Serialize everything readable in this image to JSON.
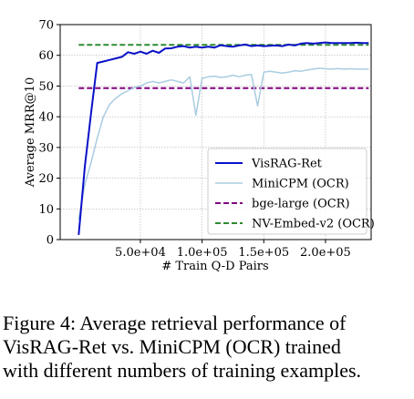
{
  "chart_data": {
    "type": "line",
    "title": "",
    "xlabel": "# Train Q-D Pairs",
    "ylabel": "Average MRR@10",
    "xlim": [
      -15000,
      237000
    ],
    "ylim": [
      0,
      70
    ],
    "x_ticks": [
      50000,
      100000,
      150000,
      200000
    ],
    "x_tick_labels": [
      "5.0e+04",
      "1.0e+05",
      "1.5e+05",
      "2.0e+05"
    ],
    "y_ticks": [
      0,
      10,
      20,
      30,
      40,
      50,
      60,
      70
    ],
    "y_tick_labels": [
      "0",
      "10",
      "20",
      "30",
      "40",
      "50",
      "60",
      "70"
    ],
    "grid": true,
    "legend_position": "lower-right",
    "series": [
      {
        "name": "VisRAG-Ret",
        "color": "#0a10c8",
        "style": "solid",
        "width": 2,
        "x": [
          0,
          5000,
          10000,
          15000,
          20000,
          25000,
          30000,
          35000,
          40000,
          45000,
          50000,
          55000,
          60000,
          65000,
          70000,
          75000,
          80000,
          85000,
          90000,
          95000,
          100000,
          105000,
          110000,
          115000,
          120000,
          125000,
          130000,
          135000,
          140000,
          145000,
          150000,
          155000,
          160000,
          165000,
          170000,
          175000,
          180000,
          185000,
          190000,
          195000,
          200000,
          205000,
          210000,
          215000,
          220000,
          225000,
          230000,
          235000
        ],
        "y": [
          1.5,
          24,
          41,
          57.5,
          58,
          58.5,
          59,
          59.5,
          61,
          60.5,
          61.2,
          60.5,
          61.5,
          60.8,
          62.2,
          62.3,
          62.8,
          63,
          62.5,
          62.8,
          62.5,
          62.8,
          62.5,
          63.3,
          63,
          62.8,
          63.2,
          63.5,
          63,
          63.2,
          63,
          63.1,
          63.2,
          63,
          63.5,
          63.2,
          63.8,
          64,
          63.8,
          64,
          64.2,
          64,
          64,
          64,
          64,
          64.1,
          64,
          64
        ]
      },
      {
        "name": "MiniCPM (OCR)",
        "color": "#a9cde0",
        "style": "solid",
        "width": 1.5,
        "x": [
          0,
          5000,
          10000,
          15000,
          20000,
          25000,
          30000,
          35000,
          40000,
          45000,
          50000,
          55000,
          60000,
          65000,
          70000,
          75000,
          80000,
          85000,
          90000,
          95000,
          100000,
          105000,
          110000,
          115000,
          120000,
          125000,
          130000,
          135000,
          140000,
          145000,
          150000,
          155000,
          160000,
          165000,
          170000,
          175000,
          180000,
          185000,
          190000,
          195000,
          200000,
          205000,
          210000,
          215000,
          220000,
          225000,
          230000,
          235000
        ],
        "y": [
          6.5,
          18,
          25,
          33,
          40,
          44,
          46,
          47.5,
          48.5,
          49.5,
          50,
          51,
          51.5,
          51,
          51.5,
          52,
          51.5,
          51,
          53,
          40.5,
          52.5,
          53,
          53.2,
          52.8,
          53,
          53.5,
          53,
          53.5,
          53.8,
          43.5,
          54.5,
          54.8,
          54.5,
          54.2,
          54.5,
          55,
          54.8,
          55.2,
          55.5,
          55.8,
          55.6,
          55.5,
          55.7,
          55.5,
          55.6,
          55.5,
          55.5,
          55.5
        ]
      },
      {
        "name": "bge-large (OCR)",
        "color": "#800080",
        "style": "dashed",
        "width": 2,
        "x": [
          0,
          235000
        ],
        "y": [
          49.3,
          49.3
        ]
      },
      {
        "name": "NV-Embed-v2 (OCR)",
        "color": "#2e8b2e",
        "style": "dashed",
        "width": 2,
        "x": [
          0,
          235000
        ],
        "y": [
          63.4,
          63.4
        ]
      }
    ]
  },
  "caption": {
    "line1": "Figure 4:  Average retrieval performance of",
    "line2": "VisRAG-Ret vs.  MiniCPM (OCR) trained",
    "line3": "with different numbers of training examples."
  }
}
